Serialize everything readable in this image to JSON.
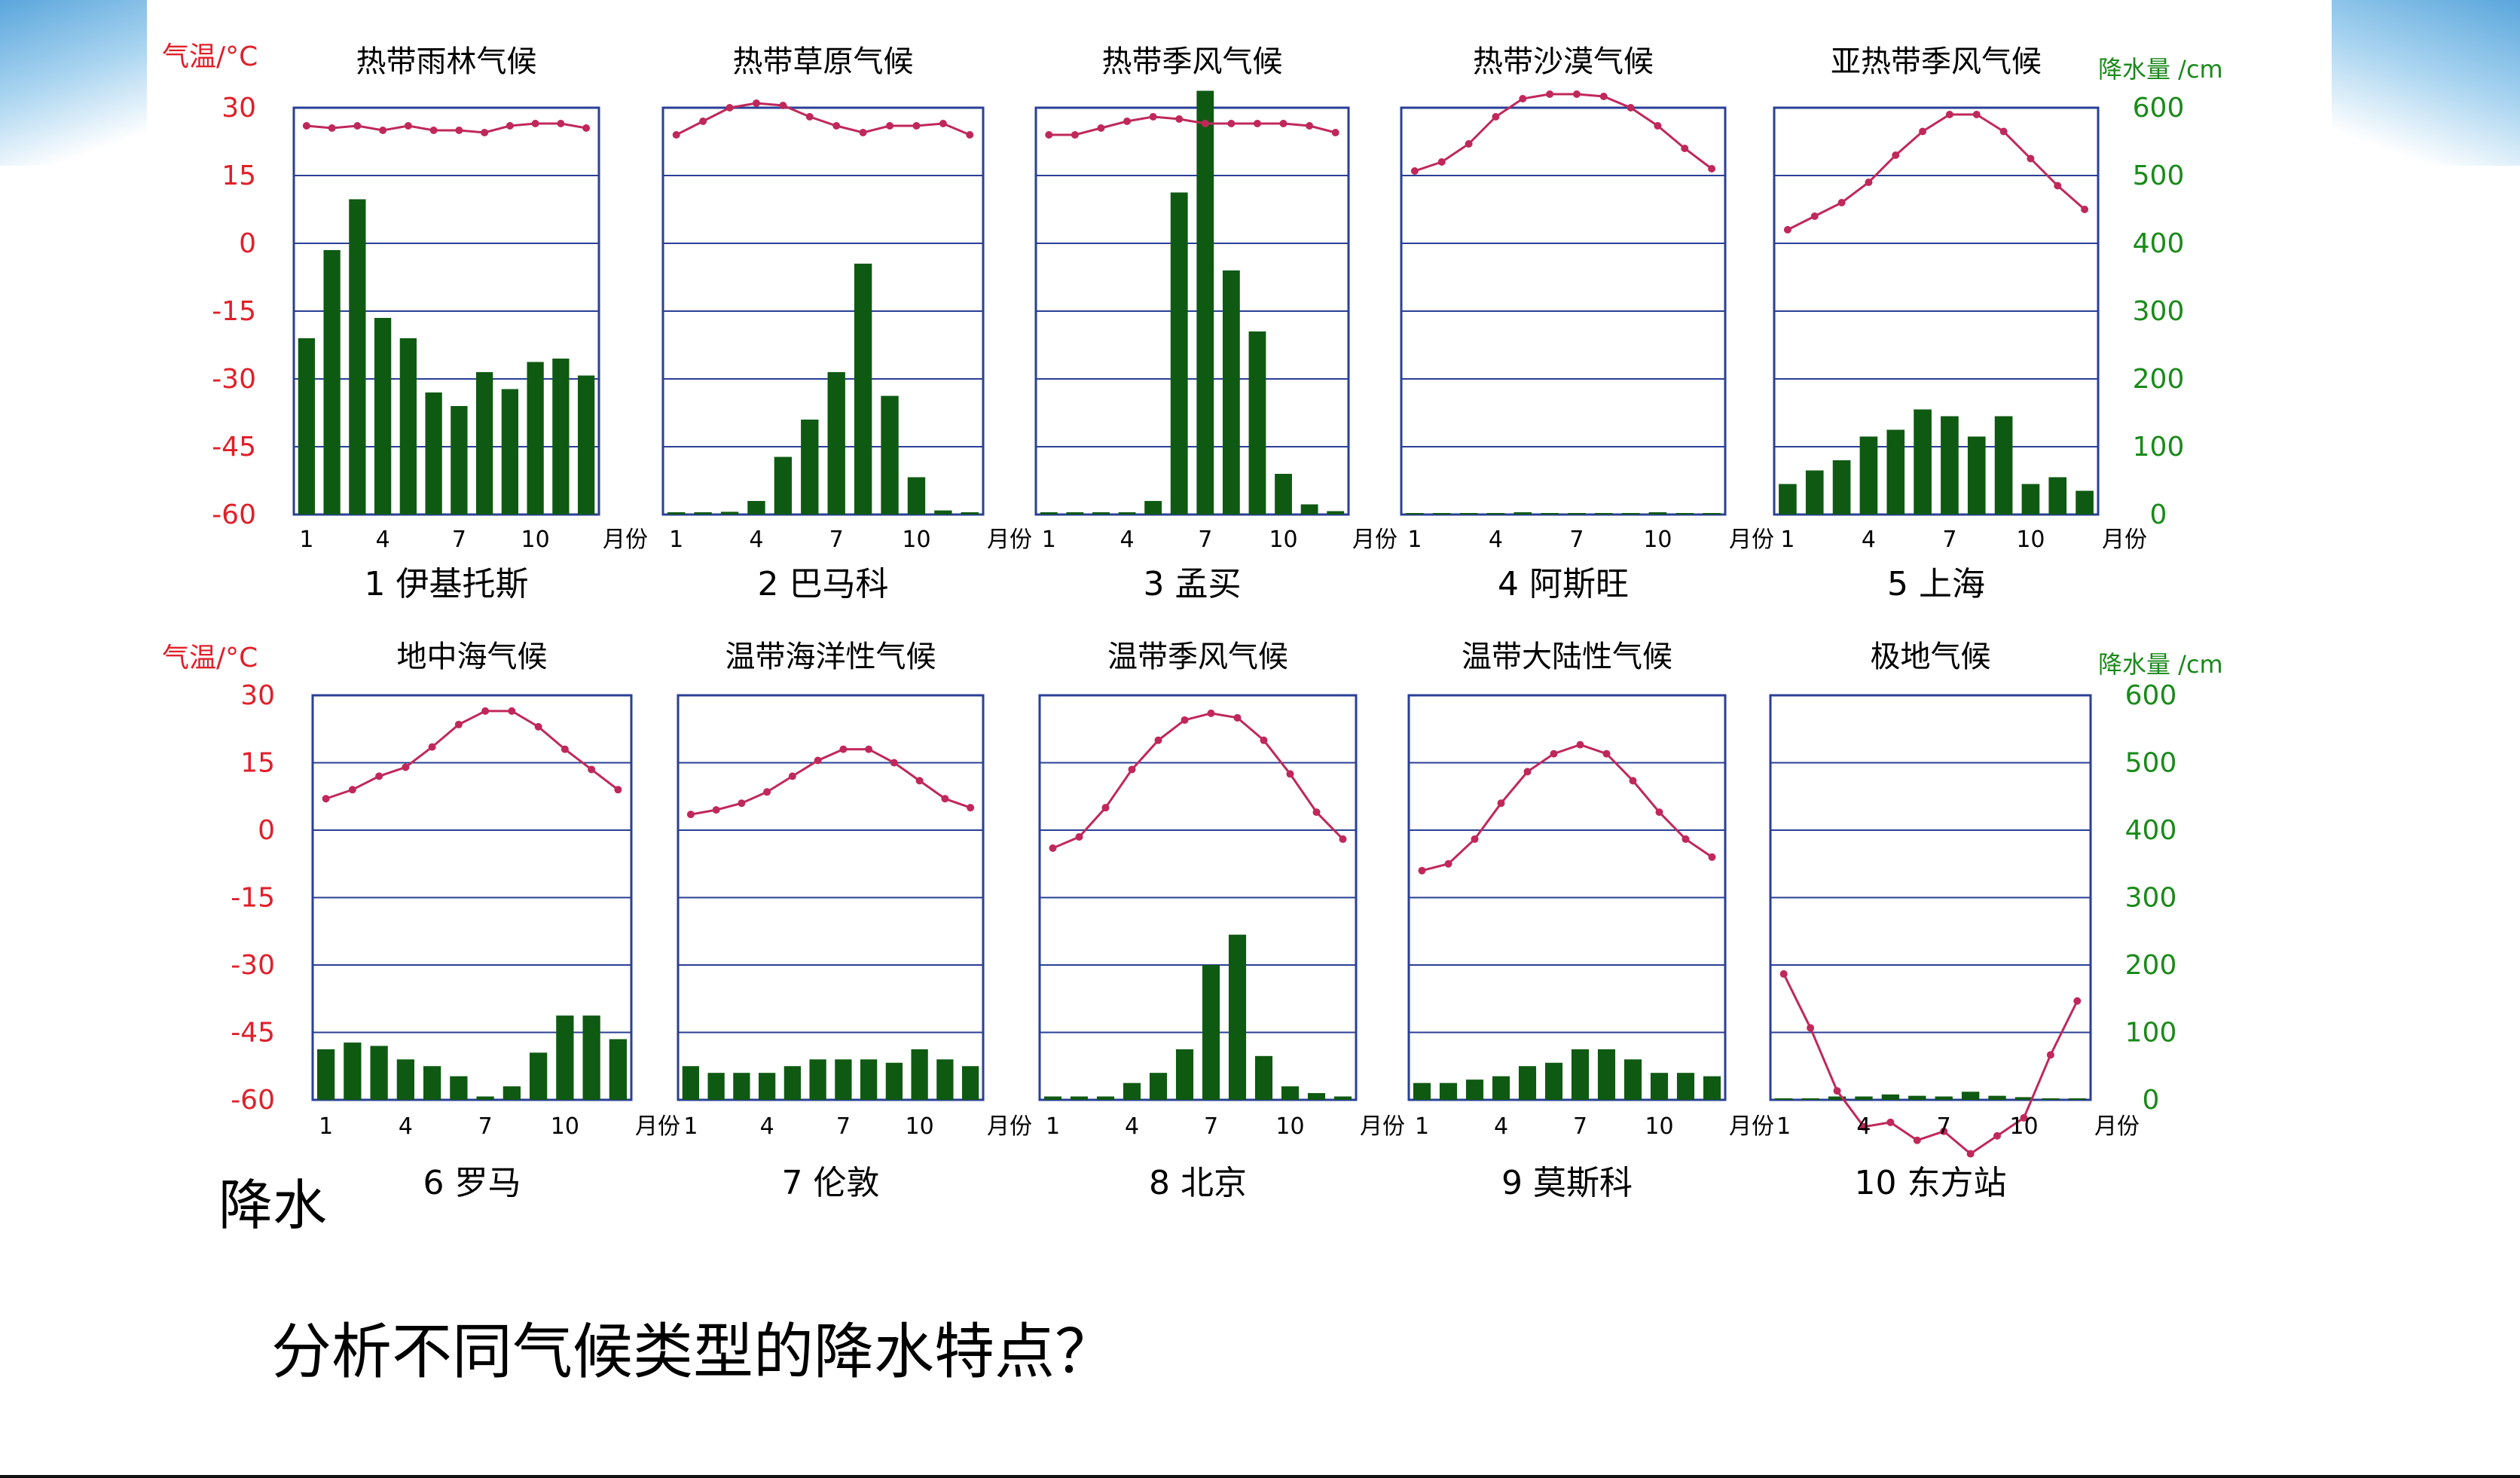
{
  "colors": {
    "temp": "#c0285a",
    "precip": "#0f5a12",
    "frame": "#2a3f96",
    "temp_axis": "#e0202a",
    "precip_axis": "#1a8a1a"
  },
  "rows": [
    {
      "temp_axis_label": "气温/°C",
      "precip_axis_label": "降水量 /cm"
    },
    {
      "temp_axis_label": "气温/°C",
      "precip_axis_label": "降水量 /cm"
    }
  ],
  "month_unit": "月份",
  "precip_label": "降水",
  "question": "分析不同气候类型的降水特点？",
  "chart_data": [
    {
      "type": "bar+line",
      "title": "热带雨林气候",
      "station": "1 伊基托斯",
      "x": [
        1,
        2,
        3,
        4,
        5,
        6,
        7,
        8,
        9,
        10,
        11,
        12
      ],
      "temp_ylim": [
        -60,
        30
      ],
      "temp_ticks": [
        30,
        15,
        0,
        -15,
        -30,
        -45,
        -60
      ],
      "precip_ylim": [
        0,
        600
      ],
      "precip_ticks": [
        600,
        500,
        400,
        300,
        200,
        100,
        0
      ],
      "x_ticks": [
        1,
        4,
        7,
        10
      ],
      "temperature": [
        26,
        25.5,
        26,
        25,
        26,
        25,
        25,
        24.5,
        26,
        26.5,
        26.5,
        25.5
      ],
      "precipitation": [
        260,
        390,
        465,
        290,
        260,
        180,
        160,
        210,
        185,
        225,
        230,
        205
      ]
    },
    {
      "type": "bar+line",
      "title": "热带草原气候",
      "station": "2 巴马科",
      "x": [
        1,
        2,
        3,
        4,
        5,
        6,
        7,
        8,
        9,
        10,
        11,
        12
      ],
      "temp_ylim": [
        -60,
        30
      ],
      "temp_ticks": [
        30,
        15,
        0,
        -15,
        -30,
        -45,
        -60
      ],
      "precip_ylim": [
        0,
        600
      ],
      "precip_ticks": [
        600,
        500,
        400,
        300,
        200,
        100,
        0
      ],
      "x_ticks": [
        1,
        4,
        7,
        10
      ],
      "temperature": [
        24,
        27,
        30,
        31,
        30.5,
        28,
        26,
        24.5,
        26,
        26,
        26.5,
        24
      ],
      "precipitation": [
        2,
        1,
        4,
        20,
        85,
        140,
        210,
        370,
        175,
        55,
        6,
        1
      ]
    },
    {
      "type": "bar+line",
      "title": "热带季风气候",
      "station": "3 孟买",
      "x": [
        1,
        2,
        3,
        4,
        5,
        6,
        7,
        8,
        9,
        10,
        11,
        12
      ],
      "temp_ylim": [
        -60,
        30
      ],
      "temp_ticks": [
        30,
        15,
        0,
        -15,
        -30,
        -45,
        -60
      ],
      "precip_ylim": [
        0,
        600
      ],
      "precip_ticks": [
        600,
        500,
        400,
        300,
        200,
        100,
        0
      ],
      "x_ticks": [
        1,
        4,
        7,
        10
      ],
      "temperature": [
        24,
        24,
        25.5,
        27,
        28,
        27.5,
        26.5,
        26.5,
        26.5,
        26.5,
        26,
        24.5
      ],
      "precipitation": [
        2,
        1,
        2,
        2,
        20,
        475,
        625,
        360,
        270,
        60,
        15,
        5
      ]
    },
    {
      "type": "bar+line",
      "title": "热带沙漠气候",
      "station": "4 阿斯旺",
      "x": [
        1,
        2,
        3,
        4,
        5,
        6,
        7,
        8,
        9,
        10,
        11,
        12
      ],
      "temp_ylim": [
        -60,
        30
      ],
      "temp_ticks": [
        30,
        15,
        0,
        -15,
        -30,
        -45,
        -60
      ],
      "precip_ylim": [
        0,
        600
      ],
      "precip_ticks": [
        600,
        500,
        400,
        300,
        200,
        100,
        0
      ],
      "x_ticks": [
        1,
        4,
        7,
        10
      ],
      "temperature": [
        16,
        18,
        22,
        28,
        32,
        33,
        33,
        32.5,
        30,
        26,
        21,
        16.5
      ],
      "precipitation": [
        0,
        0,
        0,
        0,
        2,
        0,
        0,
        0,
        0,
        1,
        0,
        0
      ]
    },
    {
      "type": "bar+line",
      "title": "亚热带季风气候",
      "station": "5 上海",
      "x": [
        1,
        2,
        3,
        4,
        5,
        6,
        7,
        8,
        9,
        10,
        11,
        12
      ],
      "temp_ylim": [
        -60,
        30
      ],
      "temp_ticks": [
        30,
        15,
        0,
        -15,
        -30,
        -45,
        -60
      ],
      "precip_ylim": [
        0,
        600
      ],
      "precip_ticks": [
        600,
        500,
        400,
        300,
        200,
        100,
        0
      ],
      "x_ticks": [
        1,
        4,
        7,
        10
      ],
      "precipitation": [
        45,
        65,
        80,
        115,
        125,
        155,
        145,
        115,
        145,
        45,
        55,
        35
      ],
      "precipitation_on_right_axis": true,
      "temperature_on_right_axis_scale": [
        420,
        440,
        460,
        490,
        530,
        565,
        590,
        590,
        565,
        525,
        485,
        450
      ]
    },
    {
      "type": "bar+line",
      "title": "地中海气候",
      "station": "6 罗马",
      "x": [
        1,
        2,
        3,
        4,
        5,
        6,
        7,
        8,
        9,
        10,
        11,
        12
      ],
      "temp_ylim": [
        -60,
        30
      ],
      "temp_ticks": [
        30,
        15,
        0,
        -15,
        -30,
        -45,
        -60
      ],
      "precip_ylim": [
        0,
        600
      ],
      "precip_ticks": [
        600,
        500,
        400,
        300,
        200,
        100,
        0
      ],
      "x_ticks": [
        1,
        4,
        7,
        10
      ],
      "temperature": [
        7,
        9,
        12,
        14,
        18.5,
        23.5,
        26.5,
        26.5,
        23,
        18,
        13.5,
        9
      ],
      "precipitation": [
        75,
        85,
        80,
        60,
        50,
        35,
        5,
        20,
        70,
        125,
        125,
        90
      ]
    },
    {
      "type": "bar+line",
      "title": "温带海洋性气候",
      "station": "7 伦敦",
      "x": [
        1,
        2,
        3,
        4,
        5,
        6,
        7,
        8,
        9,
        10,
        11,
        12
      ],
      "temp_ylim": [
        -60,
        30
      ],
      "temp_ticks": [
        30,
        15,
        0,
        -15,
        -30,
        -45,
        -60
      ],
      "precip_ylim": [
        0,
        600
      ],
      "precip_ticks": [
        600,
        500,
        400,
        300,
        200,
        100,
        0
      ],
      "x_ticks": [
        1,
        4,
        7,
        10
      ],
      "temperature": [
        3.5,
        4.5,
        6,
        8.5,
        12,
        15.5,
        18,
        18,
        15,
        11,
        7,
        5
      ],
      "precipitation": [
        50,
        40,
        40,
        40,
        50,
        60,
        60,
        60,
        55,
        75,
        60,
        50
      ]
    },
    {
      "type": "bar+line",
      "title": "温带季风气候",
      "station": "8 北京",
      "x": [
        1,
        2,
        3,
        4,
        5,
        6,
        7,
        8,
        9,
        10,
        11,
        12
      ],
      "temp_ylim": [
        -60,
        30
      ],
      "temp_ticks": [
        30,
        15,
        0,
        -15,
        -30,
        -45,
        -60
      ],
      "precip_ylim": [
        0,
        600
      ],
      "precip_ticks": [
        600,
        500,
        400,
        300,
        200,
        100,
        0
      ],
      "x_ticks": [
        1,
        4,
        7,
        10
      ],
      "temperature": [
        -4,
        -1.5,
        5,
        13.5,
        20,
        24.5,
        26,
        25,
        20,
        12.5,
        4,
        -2
      ],
      "precipitation": [
        5,
        5,
        5,
        25,
        40,
        75,
        200,
        245,
        65,
        20,
        10,
        5
      ]
    },
    {
      "type": "bar+line",
      "title": "温带大陆性气候",
      "station": "9 莫斯科",
      "x": [
        1,
        2,
        3,
        4,
        5,
        6,
        7,
        8,
        9,
        10,
        11,
        12
      ],
      "temp_ylim": [
        -60,
        30
      ],
      "temp_ticks": [
        30,
        15,
        0,
        -15,
        -30,
        -45,
        -60
      ],
      "precip_ylim": [
        0,
        600
      ],
      "precip_ticks": [
        600,
        500,
        400,
        300,
        200,
        100,
        0
      ],
      "x_ticks": [
        1,
        4,
        7,
        10
      ],
      "temperature": [
        -9,
        -7.5,
        -2,
        6,
        13,
        17,
        19,
        17,
        11,
        4,
        -2,
        -6
      ],
      "precipitation": [
        25,
        25,
        30,
        35,
        50,
        55,
        75,
        75,
        60,
        40,
        40,
        35
      ]
    },
    {
      "type": "bar+line",
      "title": "极地气候",
      "station": "10 东方站",
      "x": [
        1,
        2,
        3,
        4,
        5,
        6,
        7,
        8,
        9,
        10,
        11,
        12
      ],
      "temp_ylim": [
        -60,
        30
      ],
      "temp_ticks": [
        30,
        15,
        0,
        -15,
        -30,
        -45,
        -60
      ],
      "precip_ylim": [
        0,
        600
      ],
      "precip_ticks": [
        600,
        500,
        400,
        300,
        200,
        100,
        0
      ],
      "x_ticks": [
        1,
        4,
        7,
        10
      ],
      "temperature": [
        -32,
        -44,
        -58,
        -66,
        -65,
        -69,
        -67,
        -72,
        -68,
        -64,
        -50,
        -38
      ],
      "precipitation": [
        0,
        0,
        5,
        5,
        8,
        6,
        5,
        12,
        6,
        4,
        0,
        0
      ]
    }
  ]
}
